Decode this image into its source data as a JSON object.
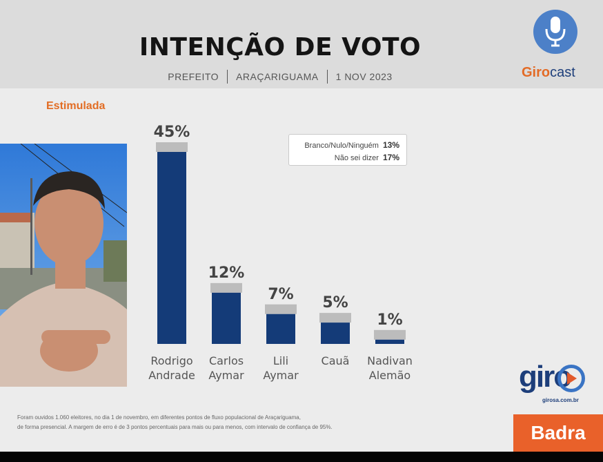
{
  "header": {
    "title": "INTENÇÃO DE VOTO",
    "subtitle_parts": [
      "PREFEITO",
      "ARAÇARIGUAMA",
      "1 NOV 2023"
    ]
  },
  "brand": {
    "girocast_a": "Giro",
    "girocast_b": "cast",
    "giro": "giro",
    "giro_site": "girosa.com.br",
    "badra": "Badra"
  },
  "label_stimulated": "Estimulada",
  "legend": {
    "rows": [
      {
        "label": "Branco/Nulo/Ninguém",
        "value": "13%"
      },
      {
        "label": "Não sei dizer",
        "value": "17%"
      }
    ]
  },
  "footnote": {
    "line1": "Foram ouvidos 1.060 eleitores, no dia 1 de novembro, em diferentes pontos de fluxo populacional de Araçariguama,",
    "line2": "de forma presencial. A margem de erro é de 3 pontos percentuais para mais ou para menos, com intervalo de confiança de 95%."
  },
  "colors": {
    "bar": "#143b78",
    "bar_cap": "#bcbcbc",
    "accent_orange": "#e26d24",
    "brand_blue": "#1d3e7a"
  },
  "chart_data": {
    "type": "bar",
    "title": "INTENÇÃO DE VOTO",
    "categories": [
      [
        "Rodrigo",
        "Andrade"
      ],
      [
        "Carlos",
        "Aymar"
      ],
      [
        "Lili",
        "Aymar"
      ],
      [
        "Cauã"
      ],
      [
        "Nadivan",
        "Alemão"
      ]
    ],
    "values": [
      45,
      12,
      7,
      5,
      1
    ],
    "value_labels": [
      "45%",
      "12%",
      "7%",
      "5%",
      "1%"
    ],
    "ylim": [
      0,
      45
    ],
    "grid": false
  }
}
